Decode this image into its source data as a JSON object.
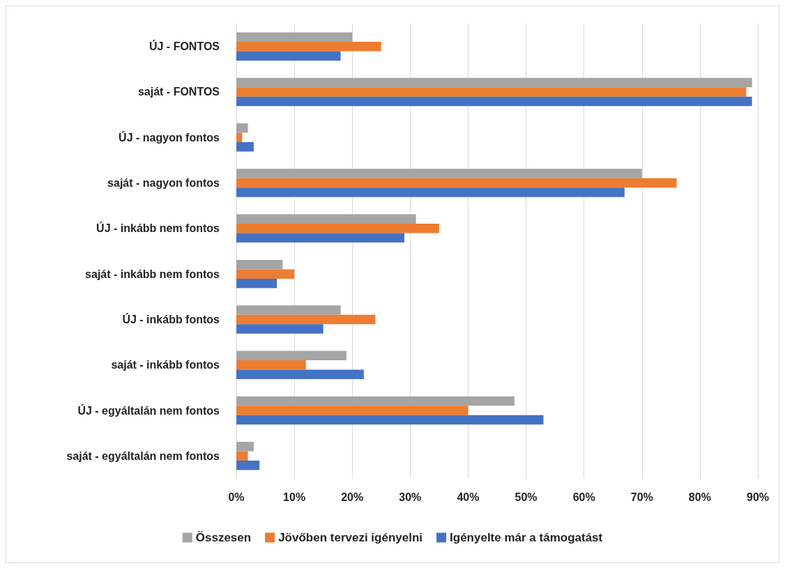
{
  "chart_data": {
    "type": "bar",
    "orientation": "horizontal",
    "categories": [
      "ÚJ - FONTOS",
      "saját - FONTOS",
      "ÚJ - nagyon fontos",
      "saját - nagyon fontos",
      "ÚJ - inkább nem fontos",
      "saját - inkább nem fontos",
      "ÚJ - inkább fontos",
      "saját - inkább fontos",
      "ÚJ - egyáltalán nem fontos",
      "saját - egyáltalán nem fontos"
    ],
    "series": [
      {
        "name": "Összesen",
        "color": "#a5a5a5",
        "values": [
          20,
          89,
          2,
          70,
          31,
          8,
          18,
          19,
          48,
          3
        ]
      },
      {
        "name": "Jövőben tervezi igényelni",
        "color": "#ed7d31",
        "values": [
          25,
          88,
          1,
          76,
          35,
          10,
          24,
          12,
          40,
          2
        ]
      },
      {
        "name": "Igényelte már a támogatást",
        "color": "#4472c4",
        "values": [
          18,
          89,
          3,
          67,
          29,
          7,
          15,
          22,
          53,
          4
        ]
      }
    ],
    "xlim": [
      0,
      90
    ],
    "xticks": [
      {
        "value": 0,
        "label": "0%"
      },
      {
        "value": 10,
        "label": "10%"
      },
      {
        "value": 20,
        "label": "20%"
      },
      {
        "value": 30,
        "label": "30%"
      },
      {
        "value": 40,
        "label": "40%"
      },
      {
        "value": 50,
        "label": "50%"
      },
      {
        "value": 60,
        "label": "60%"
      },
      {
        "value": 70,
        "label": "70%"
      },
      {
        "value": 80,
        "label": "80%"
      },
      {
        "value": 90,
        "label": "90%"
      }
    ],
    "grid": "x",
    "legend": "bottom"
  }
}
